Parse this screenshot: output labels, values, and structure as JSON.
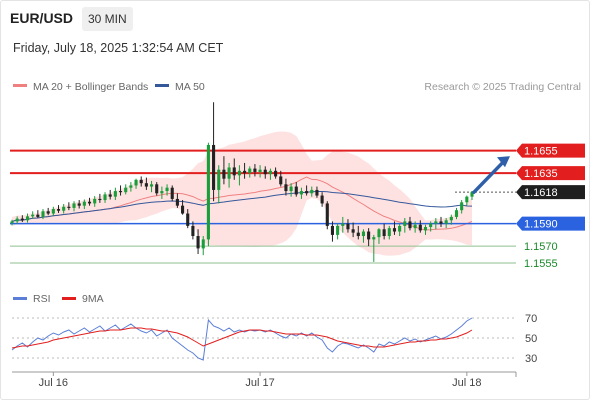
{
  "header": {
    "symbol": "EUR/USD",
    "timeframe": "30 MIN",
    "datetime": "Friday, July 18, 2025 1:32:54 AM CET"
  },
  "legend": {
    "ma20": "MA 20 + Bollinger Bands",
    "ma50": "MA 50",
    "credit": "Research © 2025 Trading Central",
    "rsi": "RSI",
    "rsi_ma": "9MA"
  },
  "colors": {
    "bull": "#1a9e3a",
    "bear": "#222222",
    "ma20": "#f08080",
    "bands": "#fdd8d8",
    "ma50": "#35589a",
    "resistance": "#e21e1e",
    "pivot": "#2a62e0",
    "support": "#8fbf8f",
    "rsi": "#5b7fd6",
    "rsi_ma": "#e21e1e",
    "arrow": "#2e5fa8"
  },
  "chart_data": [
    {
      "type": "candlestick",
      "series_ohlc_note": "",
      "x_tick_labels": [
        "Jul 16",
        "Jul 17",
        "Jul 18"
      ],
      "ylim": [
        1.1547,
        1.17
      ],
      "levels": [
        {
          "value": 1.1655,
          "label": "1.1655",
          "kind": "resistance",
          "style": "tag"
        },
        {
          "value": 1.1635,
          "label": "1.1635",
          "kind": "resistance",
          "style": "tag"
        },
        {
          "value": 1.1618,
          "label": "1.1618",
          "kind": "last",
          "style": "tag"
        },
        {
          "value": 1.159,
          "label": "1.1590",
          "kind": "pivot",
          "style": "tag"
        },
        {
          "value": 1.157,
          "label": "1.1570",
          "kind": "support",
          "style": "text"
        },
        {
          "value": 1.1555,
          "label": "1.1555",
          "kind": "support",
          "style": "text"
        }
      ],
      "forecast_arrow": {
        "from": 1.1618,
        "to": 1.165
      },
      "candles": [
        [
          1.15905,
          1.15935,
          1.15885,
          1.1592
        ],
        [
          1.1592,
          1.15965,
          1.159,
          1.15945
        ],
        [
          1.15945,
          1.15975,
          1.15915,
          1.1593
        ],
        [
          1.1593,
          1.1599,
          1.1591,
          1.15965
        ],
        [
          1.15965,
          1.1601,
          1.15945,
          1.1598
        ],
        [
          1.1598,
          1.1602,
          1.1595,
          1.1596
        ],
        [
          1.1596,
          1.1603,
          1.1594,
          1.1601
        ],
        [
          1.1601,
          1.1604,
          1.15975,
          1.1599
        ],
        [
          1.1599,
          1.1605,
          1.1597,
          1.1603
        ],
        [
          1.1603,
          1.16065,
          1.15995,
          1.16015
        ],
        [
          1.16015,
          1.16075,
          1.1599,
          1.1605
        ],
        [
          1.1605,
          1.1609,
          1.1602,
          1.1604
        ],
        [
          1.1604,
          1.161,
          1.1601,
          1.1608
        ],
        [
          1.1608,
          1.1611,
          1.16035,
          1.1606
        ],
        [
          1.1606,
          1.16115,
          1.1603,
          1.16095
        ],
        [
          1.16095,
          1.1613,
          1.1606,
          1.1608
        ],
        [
          1.1608,
          1.16145,
          1.1605,
          1.1612
        ],
        [
          1.1612,
          1.16165,
          1.16085,
          1.1611
        ],
        [
          1.1611,
          1.1618,
          1.16085,
          1.1616
        ],
        [
          1.1616,
          1.162,
          1.16115,
          1.1614
        ],
        [
          1.1614,
          1.1622,
          1.1611,
          1.1619
        ],
        [
          1.1619,
          1.1624,
          1.1615,
          1.1618
        ],
        [
          1.1618,
          1.1625,
          1.1616,
          1.1622
        ],
        [
          1.1622,
          1.1627,
          1.16185,
          1.1624
        ],
        [
          1.1624,
          1.163,
          1.1621,
          1.1629
        ],
        [
          1.1629,
          1.1632,
          1.1623,
          1.1626
        ],
        [
          1.1626,
          1.1631,
          1.162,
          1.1623
        ],
        [
          1.1623,
          1.1628,
          1.1618,
          1.1625
        ],
        [
          1.1625,
          1.1627,
          1.1615,
          1.1617
        ],
        [
          1.1617,
          1.1623,
          1.1612,
          1.1619
        ],
        [
          1.1619,
          1.1625,
          1.1615,
          1.1622
        ],
        [
          1.1622,
          1.1624,
          1.161,
          1.1612
        ],
        [
          1.1612,
          1.1617,
          1.1604,
          1.1606
        ],
        [
          1.1606,
          1.1611,
          1.1598,
          1.1599
        ],
        [
          1.1599,
          1.1603,
          1.1586,
          1.1588
        ],
        [
          1.1588,
          1.1592,
          1.1576,
          1.1579
        ],
        [
          1.1579,
          1.1585,
          1.1563,
          1.1568
        ],
        [
          1.1568,
          1.1579,
          1.1562,
          1.1576
        ],
        [
          1.1576,
          1.1662,
          1.157,
          1.166
        ],
        [
          1.166,
          1.1698,
          1.161,
          1.162
        ],
        [
          1.162,
          1.1642,
          1.1608,
          1.1638
        ],
        [
          1.1638,
          1.165,
          1.1625,
          1.163
        ],
        [
          1.163,
          1.1644,
          1.1622,
          1.164
        ],
        [
          1.164,
          1.1648,
          1.1629,
          1.1633
        ],
        [
          1.1633,
          1.1642,
          1.1624,
          1.1637
        ],
        [
          1.1637,
          1.1644,
          1.163,
          1.1635
        ],
        [
          1.1635,
          1.1641,
          1.1631,
          1.1639
        ],
        [
          1.1639,
          1.1643,
          1.1632,
          1.1636
        ],
        [
          1.1636,
          1.1642,
          1.1631,
          1.1638
        ],
        [
          1.1638,
          1.1641,
          1.163,
          1.1634
        ],
        [
          1.1634,
          1.1639,
          1.1629,
          1.1637
        ],
        [
          1.1637,
          1.164,
          1.163,
          1.1632
        ],
        [
          1.1632,
          1.1637,
          1.1623,
          1.1625
        ],
        [
          1.1625,
          1.163,
          1.1615,
          1.1619
        ],
        [
          1.1619,
          1.1626,
          1.1614,
          1.1623
        ],
        [
          1.1623,
          1.1627,
          1.1614,
          1.1616
        ],
        [
          1.1616,
          1.1622,
          1.1612,
          1.1619
        ],
        [
          1.1619,
          1.1624,
          1.1615,
          1.1617
        ],
        [
          1.1617,
          1.1623,
          1.1614,
          1.162
        ],
        [
          1.162,
          1.1623,
          1.1613,
          1.1615
        ],
        [
          1.1615,
          1.1618,
          1.1605,
          1.1608
        ],
        [
          1.1608,
          1.161,
          1.1585,
          1.1588
        ],
        [
          1.1588,
          1.1592,
          1.1574,
          1.158
        ],
        [
          1.158,
          1.159,
          1.1576,
          1.1588
        ],
        [
          1.1588,
          1.1596,
          1.1582,
          1.159
        ],
        [
          1.159,
          1.1594,
          1.1582,
          1.1585
        ],
        [
          1.1585,
          1.1591,
          1.1578,
          1.1582
        ],
        [
          1.1582,
          1.1588,
          1.1576,
          1.1579
        ],
        [
          1.1579,
          1.1585,
          1.1573,
          1.1583
        ],
        [
          1.1583,
          1.1586,
          1.157,
          1.1576
        ],
        [
          1.1576,
          1.158,
          1.1556,
          1.1578
        ],
        [
          1.1578,
          1.1586,
          1.1572,
          1.1585
        ],
        [
          1.1585,
          1.159,
          1.1576,
          1.1579
        ],
        [
          1.1579,
          1.1588,
          1.1576,
          1.1586
        ],
        [
          1.1586,
          1.1592,
          1.158,
          1.1583
        ],
        [
          1.1583,
          1.159,
          1.1579,
          1.1588
        ],
        [
          1.1588,
          1.1595,
          1.1582,
          1.1592
        ],
        [
          1.1592,
          1.1596,
          1.1584,
          1.1586
        ],
        [
          1.1586,
          1.1592,
          1.1582,
          1.1589
        ],
        [
          1.1589,
          1.1593,
          1.1582,
          1.1584
        ],
        [
          1.1584,
          1.1589,
          1.158,
          1.1587
        ],
        [
          1.1587,
          1.1592,
          1.1583,
          1.159
        ],
        [
          1.159,
          1.1595,
          1.1585,
          1.1592
        ],
        [
          1.1592,
          1.1596,
          1.1587,
          1.159
        ],
        [
          1.159,
          1.1595,
          1.1586,
          1.1593
        ],
        [
          1.1593,
          1.1598,
          1.1589,
          1.1596
        ],
        [
          1.1596,
          1.1604,
          1.1594,
          1.1602
        ],
        [
          1.1602,
          1.1611,
          1.1599,
          1.1609
        ],
        [
          1.1609,
          1.1615,
          1.1606,
          1.1614
        ],
        [
          1.1614,
          1.1619,
          1.1611,
          1.1618
        ]
      ]
    },
    {
      "type": "line",
      "title": "RSI",
      "y_tick_labels": [
        "70",
        "50",
        "30"
      ],
      "ylim": [
        20,
        80
      ],
      "series": [
        {
          "name": "RSI",
          "values": [
            38,
            42,
            45,
            41,
            46,
            50,
            48,
            52,
            55,
            53,
            56,
            58,
            54,
            57,
            60,
            56,
            59,
            62,
            57,
            60,
            63,
            58,
            61,
            64,
            60,
            57,
            55,
            58,
            52,
            55,
            58,
            50,
            46,
            42,
            38,
            35,
            30,
            28,
            68,
            62,
            60,
            57,
            60,
            56,
            58,
            56,
            58,
            57,
            58,
            56,
            58,
            55,
            52,
            50,
            54,
            52,
            55,
            52,
            55,
            51,
            48,
            40,
            36,
            42,
            45,
            44,
            42,
            40,
            43,
            40,
            36,
            44,
            42,
            46,
            44,
            47,
            50,
            47,
            49,
            46,
            48,
            50,
            52,
            49,
            51,
            54,
            58,
            62,
            67,
            70
          ]
        },
        {
          "name": "9MA",
          "values": [
            40,
            41,
            42,
            42,
            43,
            44,
            45,
            46,
            48,
            49,
            50,
            51,
            52,
            53,
            54,
            55,
            56,
            57,
            57,
            58,
            58,
            58,
            59,
            60,
            60,
            60,
            59,
            59,
            58,
            57,
            57,
            56,
            55,
            53,
            51,
            48,
            45,
            42,
            44,
            46,
            48,
            50,
            52,
            54,
            56,
            57,
            58,
            58,
            58,
            57,
            57,
            56,
            55,
            54,
            54,
            54,
            54,
            53,
            53,
            53,
            52,
            51,
            49,
            47,
            46,
            45,
            44,
            43,
            42,
            42,
            41,
            41,
            41,
            42,
            43,
            44,
            45,
            46,
            46,
            47,
            47,
            48,
            48,
            49,
            49,
            50,
            51,
            53,
            55,
            58
          ]
        }
      ]
    }
  ]
}
